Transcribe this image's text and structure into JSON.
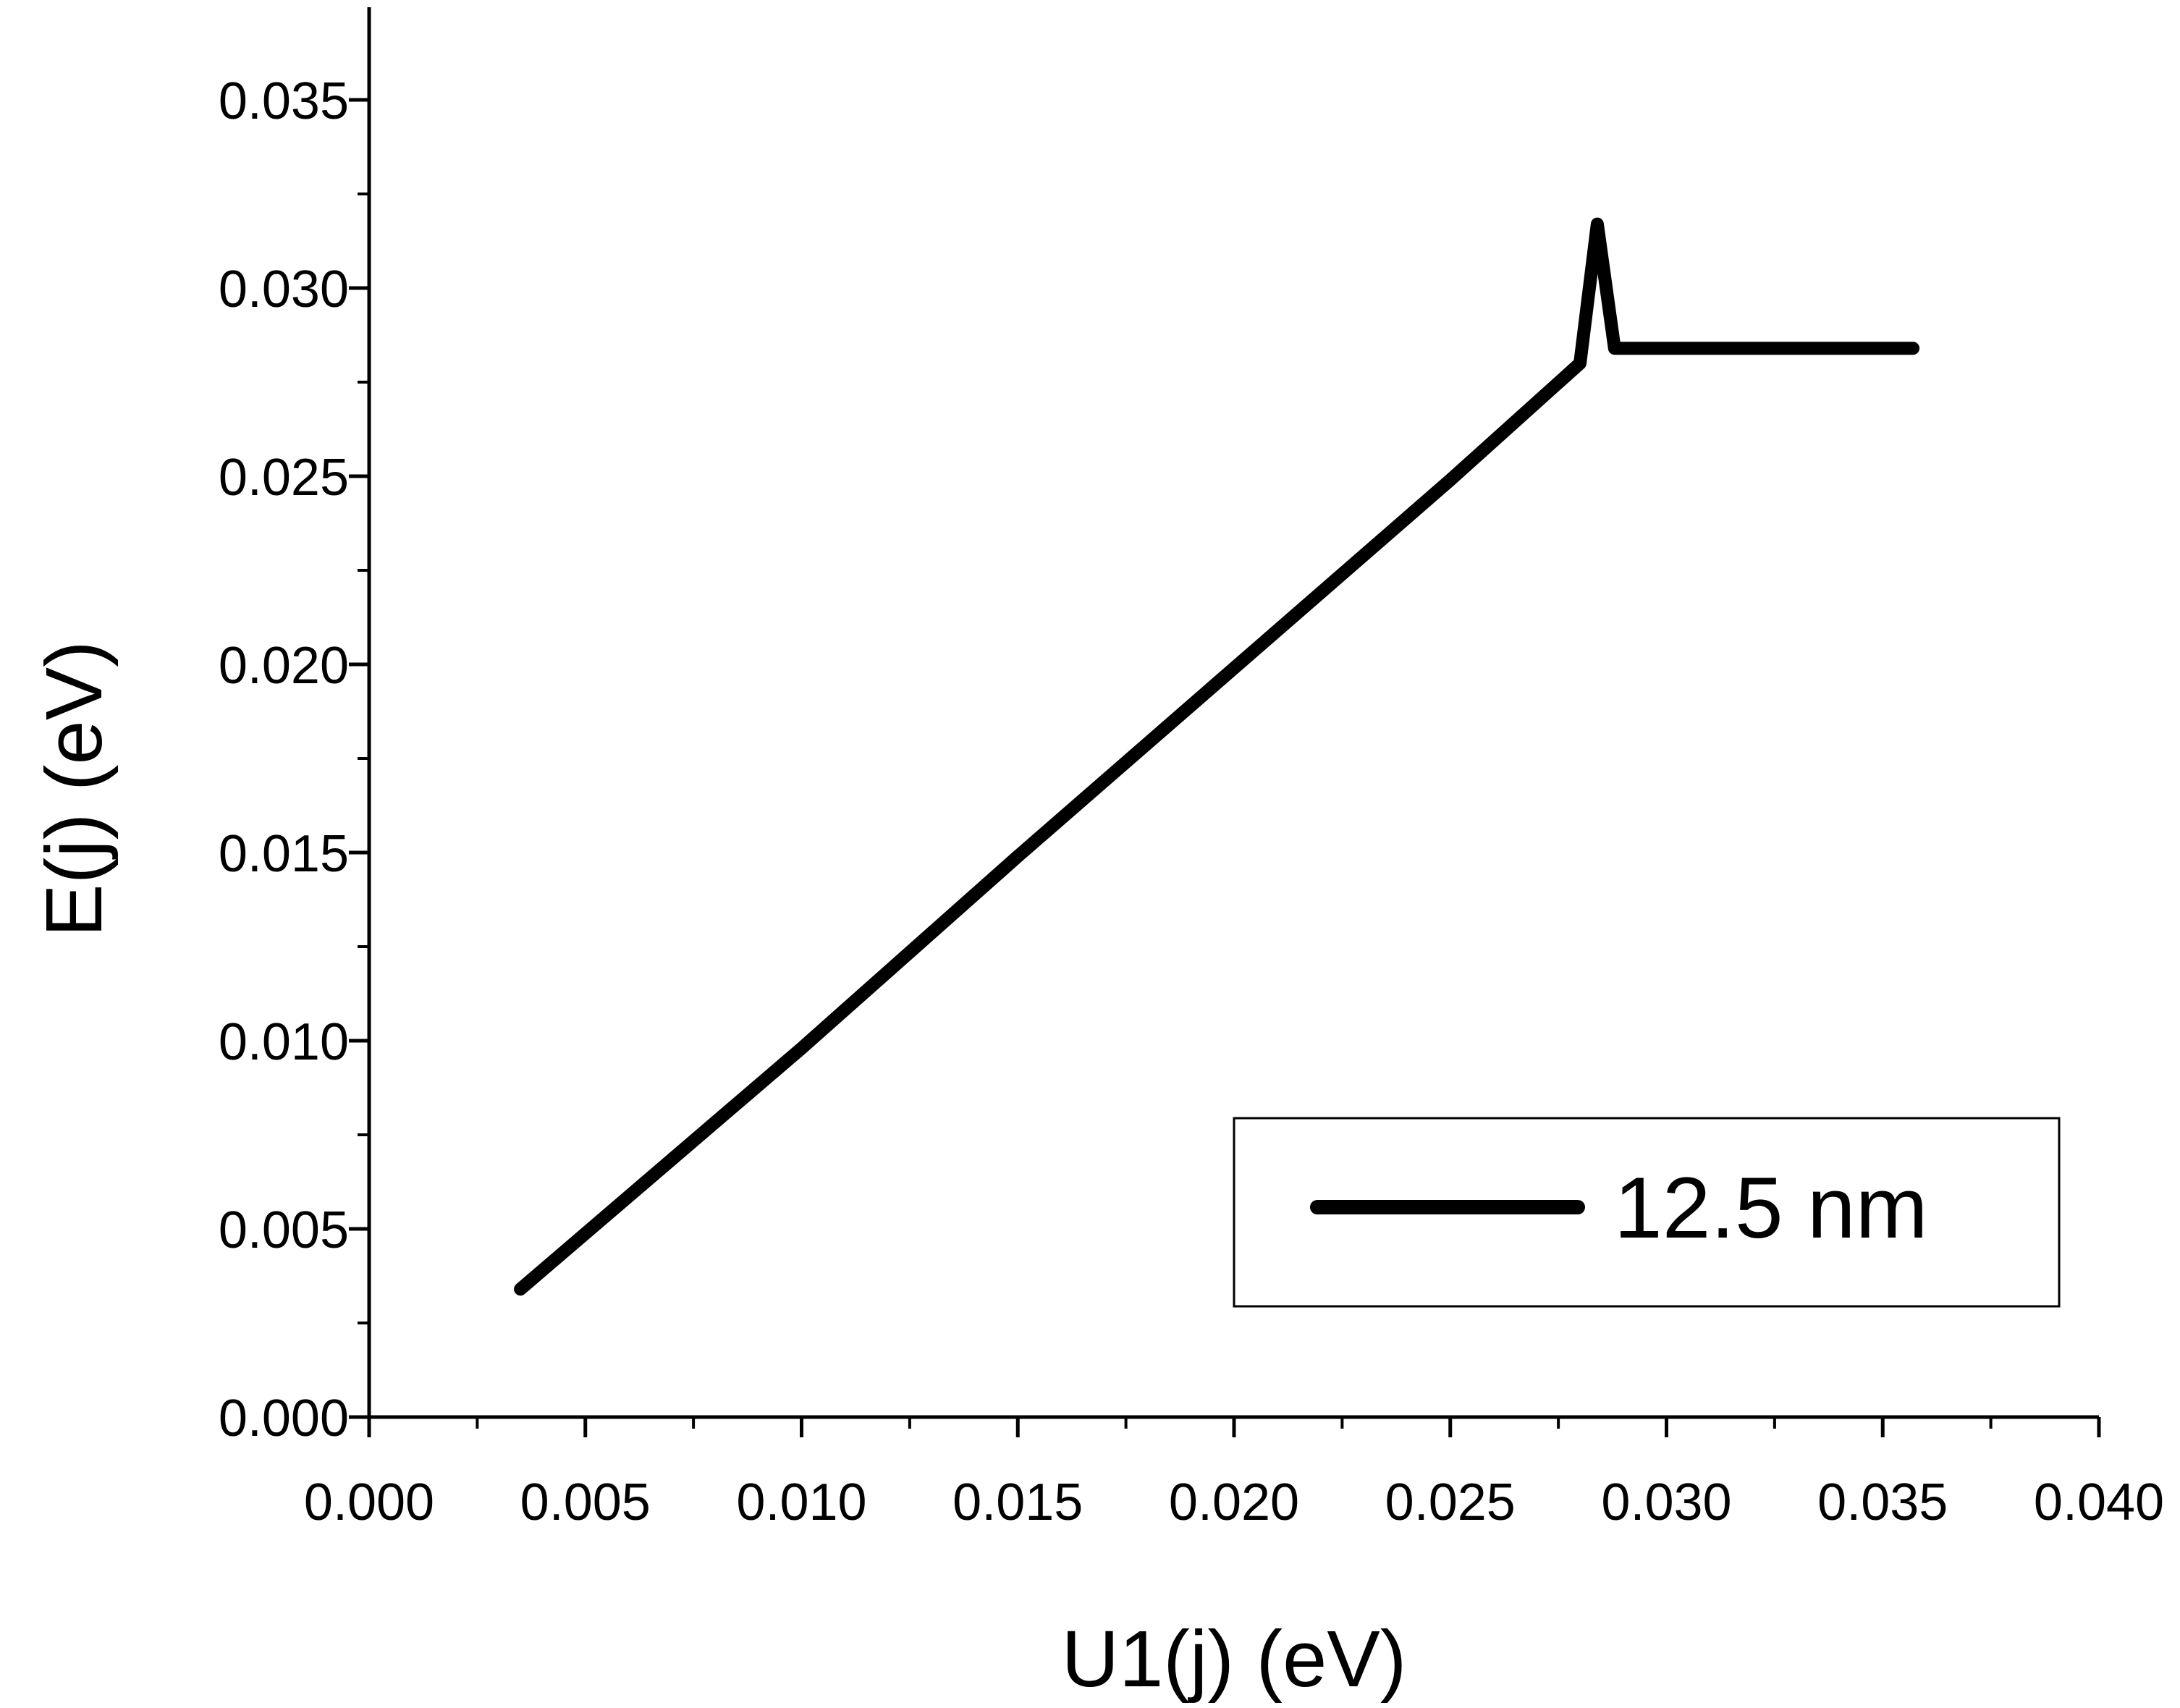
{
  "colors": {
    "background": "#ffffff",
    "axis": "#000000",
    "line": "#000000"
  },
  "chart_data": {
    "type": "line",
    "title": "",
    "xlabel": "U1(j)   (eV)",
    "ylabel": "E(j)   (eV)",
    "xlim": [
      0.0,
      0.04
    ],
    "ylim": [
      0.0,
      0.037
    ],
    "x_ticks": [
      "0.000",
      "0.005",
      "0.010",
      "0.015",
      "0.020",
      "0.025",
      "0.030",
      "0.035",
      "0.040"
    ],
    "y_ticks": [
      "0.000",
      "0.005",
      "0.010",
      "0.015",
      "0.020",
      "0.025",
      "0.030",
      "0.035"
    ],
    "grid": false,
    "legend": {
      "position": "bottom-right",
      "entries": [
        "12.5 nm"
      ]
    },
    "series": [
      {
        "name": "12.5 nm",
        "x": [
          0.0035,
          0.01,
          0.015,
          0.02,
          0.025,
          0.028,
          0.0284,
          0.0288,
          0.03,
          0.0357
        ],
        "y": [
          0.0034,
          0.0098,
          0.0149,
          0.0199,
          0.0249,
          0.028,
          0.0317,
          0.0284,
          0.0284,
          0.0284
        ]
      }
    ]
  }
}
